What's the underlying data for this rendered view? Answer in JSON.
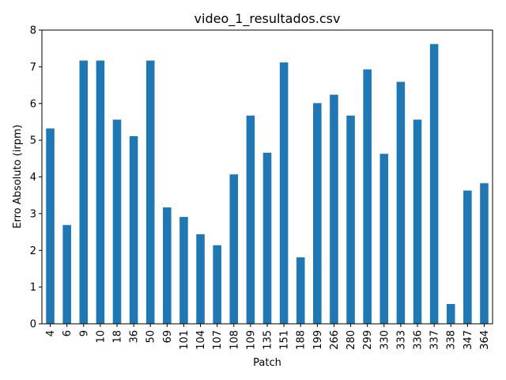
{
  "chart_data": {
    "type": "bar",
    "title": "video_1_resultados.csv",
    "xlabel": "Patch",
    "ylabel": "Erro Absoluto (irpm)",
    "categories": [
      "4",
      "6",
      "9",
      "10",
      "18",
      "36",
      "50",
      "69",
      "101",
      "104",
      "107",
      "108",
      "109",
      "135",
      "151",
      "188",
      "199",
      "266",
      "280",
      "299",
      "330",
      "333",
      "336",
      "337",
      "338",
      "347",
      "364"
    ],
    "values": [
      5.32,
      2.69,
      7.17,
      7.17,
      5.56,
      5.11,
      7.17,
      3.17,
      2.91,
      2.44,
      2.14,
      4.07,
      5.67,
      4.66,
      7.12,
      1.81,
      6.01,
      6.24,
      5.67,
      6.93,
      4.63,
      6.59,
      5.56,
      7.62,
      0.54,
      3.63,
      3.83
    ],
    "ylim": [
      0,
      8
    ],
    "yticks": [
      0,
      1,
      2,
      3,
      4,
      5,
      6,
      7,
      8
    ],
    "grid": false,
    "bar_color": "#1f77b4"
  }
}
